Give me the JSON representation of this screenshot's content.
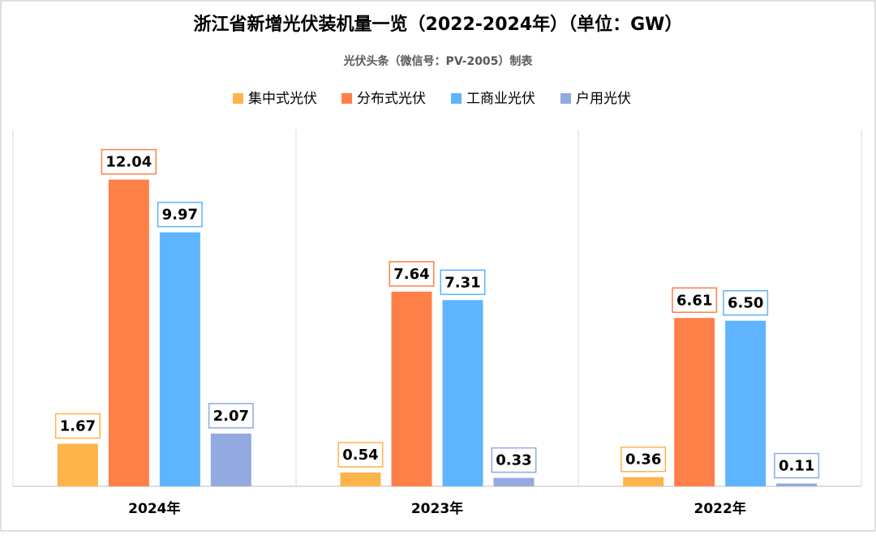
{
  "chart_data": {
    "type": "bar",
    "title": "浙江省新增光伏装机量一览（2022-2024年）（单位：GW）",
    "subtitle": "光伏头条（微信号：PV-2005）制表",
    "categories": [
      "2024年",
      "2023年",
      "2022年"
    ],
    "series": [
      {
        "name": "集中式光伏",
        "color": "#FDB44B",
        "values": [
          1.67,
          0.54,
          0.36
        ],
        "value_labels": [
          "1.67",
          "0.54",
          "0.36"
        ]
      },
      {
        "name": "分布式光伏",
        "color": "#FF7F48",
        "values": [
          12.04,
          7.64,
          6.61
        ],
        "value_labels": [
          "12.04",
          "7.64",
          "6.61"
        ]
      },
      {
        "name": "工商业光伏",
        "color": "#5EB4FF",
        "values": [
          9.97,
          7.31,
          6.5
        ],
        "value_labels": [
          "9.97",
          "7.31",
          "6.50"
        ]
      },
      {
        "name": "户用光伏",
        "color": "#92AADF",
        "values": [
          2.07,
          0.33,
          0.11
        ],
        "value_labels": [
          "2.07",
          "0.33",
          "0.11"
        ]
      }
    ],
    "ylim": [
      0,
      14
    ]
  }
}
